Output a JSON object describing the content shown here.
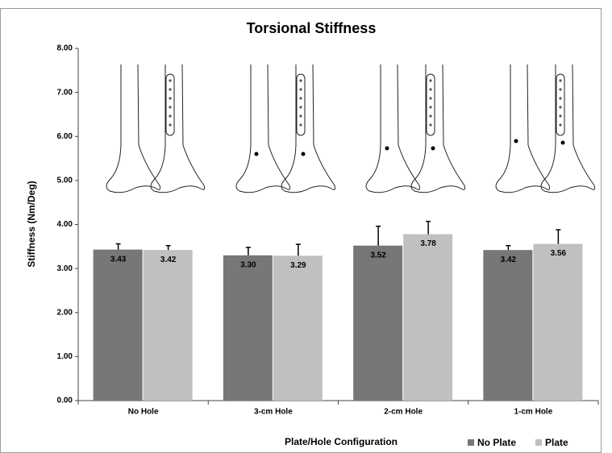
{
  "chart_data": {
    "type": "bar",
    "title": "Torsional Stiffness",
    "x_label": "Plate/Hole Configuration",
    "y_label": "Stiffness (Nm/Deg)",
    "categories": [
      "No Hole",
      "3-cm Hole",
      "2-cm Hole",
      "1-cm Hole"
    ],
    "series": [
      {
        "name": "No Plate",
        "color": "#777777",
        "values": [
          3.43,
          3.3,
          3.52,
          3.42
        ],
        "value_labels": [
          "3.43",
          "3.30",
          "3.52",
          "3.42"
        ],
        "errors": [
          0.13,
          0.18,
          0.44,
          0.1
        ]
      },
      {
        "name": "Plate",
        "color": "#c0c0c0",
        "values": [
          3.42,
          3.29,
          3.78,
          3.56
        ],
        "value_labels": [
          "3.42",
          "3.29",
          "3.78",
          "3.56"
        ],
        "errors": [
          0.1,
          0.26,
          0.29,
          0.32
        ]
      }
    ],
    "ylim": [
      0,
      8
    ],
    "yticks": [
      {
        "value": 0,
        "label": "0.00"
      },
      {
        "value": 1,
        "label": "1.00"
      },
      {
        "value": 2,
        "label": "2.00"
      },
      {
        "value": 3,
        "label": "3.00"
      },
      {
        "value": 4,
        "label": "4.00"
      },
      {
        "value": 5,
        "label": "5.00"
      },
      {
        "value": 6,
        "label": "6.00"
      },
      {
        "value": 7,
        "label": "7.00"
      },
      {
        "value": 8,
        "label": "8.00"
      }
    ],
    "grid": false,
    "legend": "bottom-right"
  }
}
